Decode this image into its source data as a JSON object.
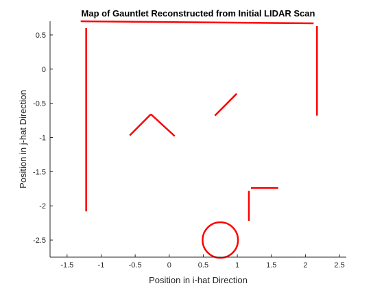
{
  "chart_data": {
    "type": "line",
    "title": "Map of Gauntlet Reconstructed from Initial LIDAR Scan",
    "xlabel": "Position in i-hat Direction",
    "ylabel": "Position in j-hat Direction",
    "xlim": [
      -1.75,
      2.6
    ],
    "ylim": [
      -2.75,
      0.7
    ],
    "xticks": [
      -1.5,
      -1,
      -0.5,
      0,
      0.5,
      1,
      1.5,
      2,
      2.5
    ],
    "xtick_labels": [
      "-1.5",
      "-1",
      "-0.5",
      "0",
      "0.5",
      "1",
      "1.5",
      "2",
      "2.5"
    ],
    "yticks": [
      0.5,
      0,
      -0.5,
      -1,
      -1.5,
      -2,
      -2.5
    ],
    "ytick_labels": [
      "0.5",
      "0",
      "-0.5",
      "-1",
      "-1.5",
      "-2",
      "-2.5"
    ],
    "grid": false,
    "line_color": "#ff0000",
    "segments": [
      {
        "x": [
          -1.3,
          2.12
        ],
        "y": [
          0.7,
          0.67
        ]
      },
      {
        "x": [
          -1.22,
          -1.22
        ],
        "y": [
          0.6,
          -2.08
        ]
      },
      {
        "x": [
          2.17,
          2.17
        ],
        "y": [
          0.63,
          -0.68
        ]
      },
      {
        "x": [
          -0.58,
          -0.27
        ],
        "y": [
          -0.97,
          -0.66
        ]
      },
      {
        "x": [
          -0.27,
          0.08
        ],
        "y": [
          -0.66,
          -0.98
        ]
      },
      {
        "x": [
          0.67,
          0.99
        ],
        "y": [
          -0.68,
          -0.36
        ]
      },
      {
        "x": [
          1.17,
          1.17
        ],
        "y": [
          -1.78,
          -2.22
        ]
      },
      {
        "x": [
          1.2,
          1.6
        ],
        "y": [
          -1.74,
          -1.74
        ]
      }
    ],
    "circles": [
      {
        "cx": 0.75,
        "cy": -2.5,
        "r": 0.26
      }
    ]
  }
}
